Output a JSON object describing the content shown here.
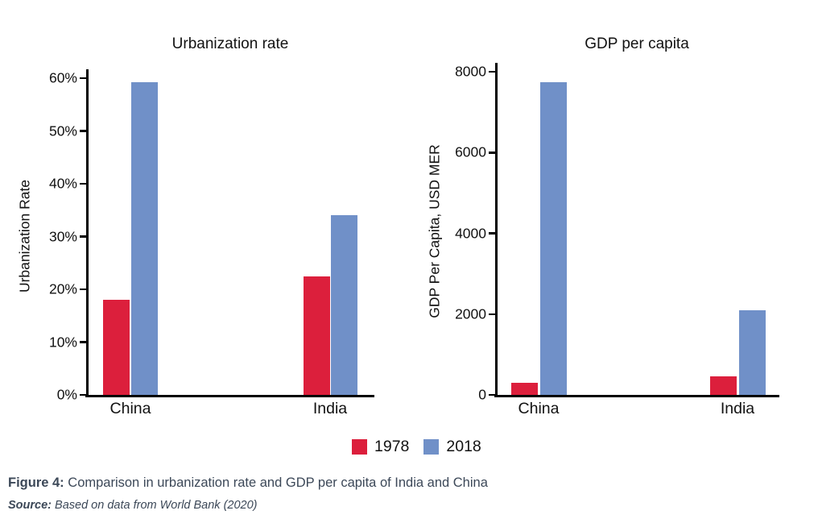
{
  "caption": {
    "label": "Figure 4:",
    "text": "Comparison in urbanization rate and GDP per capita of India and China"
  },
  "source": {
    "label": "Source:",
    "text": "Based on data from World Bank (2020)"
  },
  "legend": {
    "items": [
      {
        "label": "1978",
        "color": "#DC1F3C"
      },
      {
        "label": "2018",
        "color": "#7090C8"
      }
    ]
  },
  "chart_data": [
    {
      "type": "bar",
      "title": "Urbanization rate",
      "xlabel": "",
      "ylabel": "Urbanization Rate",
      "categories": [
        "China",
        "India"
      ],
      "series": [
        {
          "name": "1978",
          "color": "#DC1F3C",
          "values": [
            18,
            22.5
          ]
        },
        {
          "name": "2018",
          "color": "#7090C8",
          "values": [
            59.2,
            34
          ]
        }
      ],
      "ylim": [
        0,
        60
      ],
      "y_ticks": [
        0,
        10,
        20,
        30,
        40,
        50,
        60
      ],
      "y_tick_format": "percent",
      "grid": false,
      "legend_position": "bottom"
    },
    {
      "type": "bar",
      "title": "GDP per capita",
      "xlabel": "",
      "ylabel": "GDP Per Capita, USD MER",
      "categories": [
        "China",
        "India"
      ],
      "series": [
        {
          "name": "1978",
          "color": "#DC1F3C",
          "values": [
            300,
            450
          ]
        },
        {
          "name": "2018",
          "color": "#7090C8",
          "values": [
            7750,
            2100
          ]
        }
      ],
      "ylim": [
        0,
        8000
      ],
      "y_ticks": [
        0,
        2000,
        4000,
        6000,
        8000
      ],
      "y_tick_format": "number",
      "grid": false,
      "legend_position": "bottom"
    }
  ]
}
